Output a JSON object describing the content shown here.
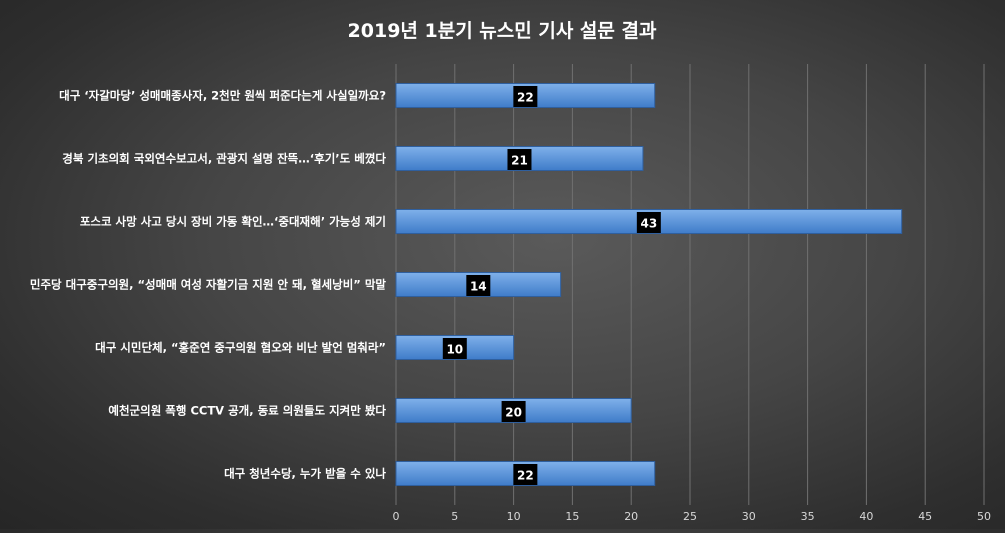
{
  "chart_data": {
    "type": "bar",
    "orientation": "horizontal",
    "title": "2019년 1분기 뉴스민 기사 설문 결과",
    "categories": [
      "대구 ‘자갈마당’ 성매매종사자, 2천만 원씩 퍼준다는게 사실일까요?",
      "경북 기초의회 국외연수보고서, 관광지 설명 잔뜩…‘후기’도 베꼈다",
      "포스코 사망 사고 당시 장비 가동 확인…‘중대재해’ 가능성 제기",
      "민주당 대구중구의원, “성매매 여성 자활기금 지원 안 돼, 혈세낭비” 막말",
      "대구 시민단체, “홍준연 중구의원 혐오와 비난 발언 멈춰라”",
      "예천군의원 폭행 CCTV 공개, 동료 의원들도 지켜만 봤다",
      "대구 청년수당, 누가 받을 수 있나"
    ],
    "values": [
      22,
      21,
      43,
      14,
      10,
      20,
      22
    ],
    "xlim": [
      0,
      50
    ],
    "xticks": [
      0,
      5,
      10,
      15,
      20,
      25,
      30,
      35,
      40,
      45,
      50
    ],
    "grid": true,
    "legend": "none",
    "colors": {
      "bar_top": "#7fb0ea",
      "bar_bottom": "#3f7cc9",
      "bar_stroke": "#2f5f9e",
      "label_box": "#000000",
      "grid": "#707070",
      "text": "#ffffff",
      "tick_text": "#d8d8d8"
    }
  }
}
